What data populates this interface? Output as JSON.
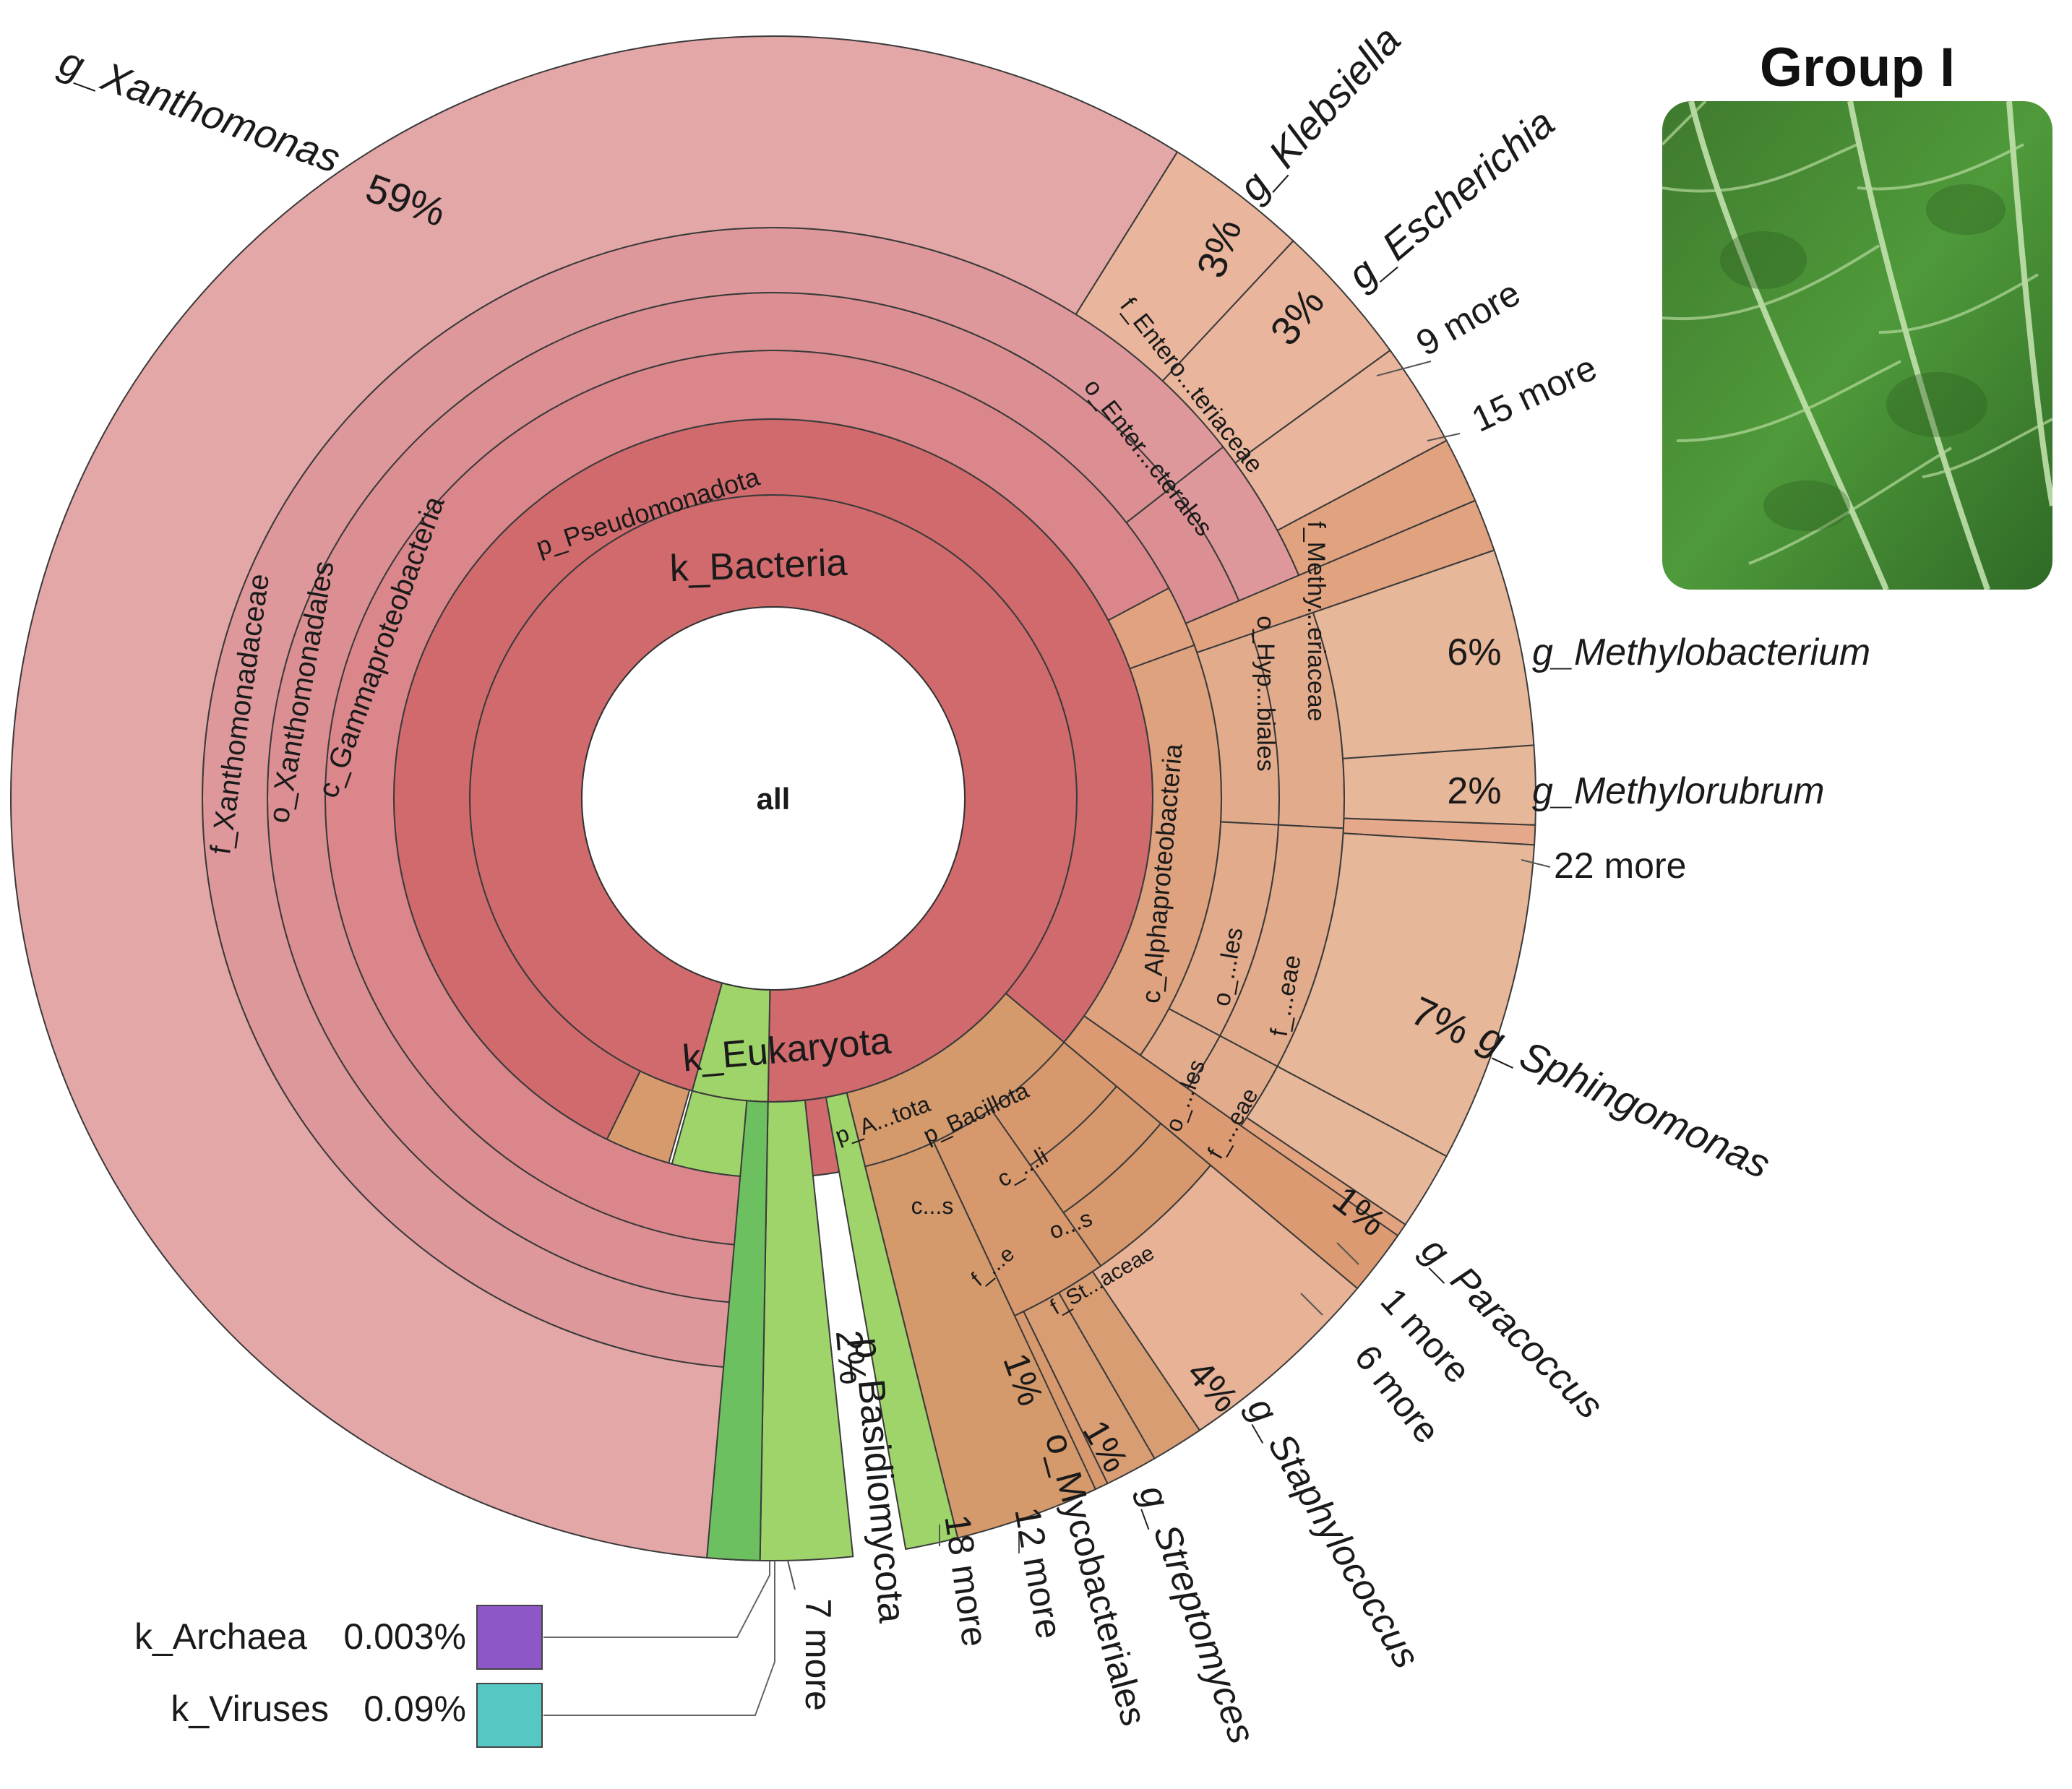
{
  "group_title": "Group I",
  "photo": {
    "subject": "leaf-photo"
  },
  "colors": {
    "kingdom_bacteria": "#d06a6d",
    "phylum": "#d67d80",
    "class": "#da868a",
    "order": "#dc8f92",
    "family": "#de989b",
    "genus": "#e3a7a8",
    "alpha": "#e7b79a",
    "alpha_inner": "#dea07c",
    "bacillota": "#d79a6c",
    "eukaryota": "#9ed46a",
    "eukaryota_dark": "#6cc05f",
    "archaea": "#8e57c8",
    "viruses": "#55c8c4"
  },
  "chart_data": {
    "type": "sunburst",
    "title": "Group I",
    "center_label": "all",
    "rings": [
      "kingdom",
      "phylum",
      "class",
      "order",
      "family",
      "genus"
    ],
    "nodes": [
      {
        "rank": "kingdom",
        "name": "k_Bacteria",
        "percent": 95.9
      },
      {
        "rank": "kingdom",
        "name": "k_Eukaryota",
        "percent": 4.0
      },
      {
        "rank": "kingdom",
        "name": "k_Archaea",
        "percent": 0.003
      },
      {
        "rank": "kingdom",
        "name": "k_Viruses",
        "percent": 0.09
      },
      {
        "rank": "phylum",
        "name": "p_Pseudomonadota"
      },
      {
        "rank": "phylum",
        "name": "p_A...tota"
      },
      {
        "rank": "phylum",
        "name": "p_Bacillota"
      },
      {
        "rank": "phylum",
        "name": "p_Basidiomycota",
        "percent": 2
      },
      {
        "rank": "class",
        "name": "c_Gammaproteobacteria"
      },
      {
        "rank": "class",
        "name": "c_Alphaproteobacteria"
      },
      {
        "rank": "class",
        "name": "c_...li"
      },
      {
        "rank": "class",
        "name": "c...s"
      },
      {
        "rank": "order",
        "name": "o_Xanthomonadales"
      },
      {
        "rank": "order",
        "name": "o_Enter...cterales"
      },
      {
        "rank": "order",
        "name": "o_Hyp...biales"
      },
      {
        "rank": "order",
        "name": "o_...les"
      },
      {
        "rank": "order",
        "name": "o_...les (2)"
      },
      {
        "rank": "order",
        "name": "o...s"
      },
      {
        "rank": "order",
        "name": "o_Mycobacteriales",
        "percent": 1
      },
      {
        "rank": "family",
        "name": "f_Xanthomonadaceae"
      },
      {
        "rank": "family",
        "name": "f_Entero...teriaceae"
      },
      {
        "rank": "family",
        "name": "f_Methy...eriaceae"
      },
      {
        "rank": "family",
        "name": "f_...eae"
      },
      {
        "rank": "family",
        "name": "f_...eae (2)"
      },
      {
        "rank": "family",
        "name": "f_St...aceae"
      },
      {
        "rank": "family",
        "name": "f_...e"
      },
      {
        "rank": "genus",
        "name": "g_Xanthomonas",
        "percent": 59
      },
      {
        "rank": "genus",
        "name": "g_Klebsiella",
        "percent": 3
      },
      {
        "rank": "genus",
        "name": "g_Escherichia",
        "percent": 3
      },
      {
        "rank": "genus",
        "name": "9 more"
      },
      {
        "rank": "genus",
        "name": "15 more"
      },
      {
        "rank": "genus",
        "name": "g_Methylobacterium",
        "percent": 6
      },
      {
        "rank": "genus",
        "name": "g_Methylorubrum",
        "percent": 2
      },
      {
        "rank": "genus",
        "name": "22 more"
      },
      {
        "rank": "genus",
        "name": "g_Sphingomonas",
        "percent": 7
      },
      {
        "rank": "genus",
        "name": "g_Paracoccus",
        "percent": 1
      },
      {
        "rank": "genus",
        "name": "1 more"
      },
      {
        "rank": "genus",
        "name": "6 more"
      },
      {
        "rank": "genus",
        "name": "g_Staphylococcus",
        "percent": 4
      },
      {
        "rank": "genus",
        "name": "g_Streptomyces",
        "percent": 1
      },
      {
        "rank": "genus",
        "name": "12 more"
      },
      {
        "rank": "genus",
        "name": "18 more"
      },
      {
        "rank": "genus",
        "name": "7 more"
      }
    ],
    "legend": [
      {
        "label": "k_Archaea",
        "percent_text": "0.003%",
        "color": "#8e57c8"
      },
      {
        "label": "k_Viruses",
        "percent_text": "0.09%",
        "color": "#55c8c4"
      }
    ]
  },
  "texts": {
    "center": "all",
    "k_bacteria": "k_Bacteria",
    "k_eukaryota": "k_Eukaryota",
    "p_pseudomonadota": "p_Pseudomonadota",
    "c_gammaproteobacteria": "c_Gammaproteobacteria",
    "o_xanthomonadales": "o_Xanthomonadales",
    "f_xanthomonadaceae": "f_Xanthomonadaceae",
    "g_xanthomonas": "g_Xanthomonas",
    "pct_59": "59%",
    "g_klebsiella": "g_Klebsiella",
    "g_escherichia": "g_Escherichia",
    "pct_3a": "3%",
    "pct_3b": "3%",
    "more_9": "9 more",
    "more_15": "15 more",
    "f_entero": "f_Entero...teriaceae",
    "o_enter": "o_Enter...cterales",
    "g_methylobacterium": "g_Methylobacterium",
    "pct_6": "6%",
    "g_methylorubrum": "g_Methylorubrum",
    "pct_2a": "2%",
    "more_22": "22 more",
    "f_methy": "f_Methy...eriaceae",
    "o_hyp": "o_Hyp...biales",
    "c_alpha": "c_Alphaproteobacteria",
    "o_les1": "o_...les",
    "f_eae1": "f_...eae",
    "g_sphingomonas": "g_Sphingomonas",
    "pct_7": "7%",
    "o_les2": "o_...les",
    "f_eae2": "f_...eae",
    "pct_1a": "1%",
    "g_paracoccus": "g_Paracoccus",
    "more_1": "1 more",
    "more_6": "6 more",
    "p_atota": "p_A...tota",
    "p_bacillota": "p_Bacillota",
    "c_li": "c_...li",
    "c_s": "c...s",
    "o_s": "o...s",
    "f_e": "f_...e",
    "f_staceae": "f_St...aceae",
    "pct_4": "4%",
    "g_staphylococcus": "g_Staphylococcus",
    "pct_1b": "1%",
    "g_streptomyces": "g_Streptomyces",
    "pct_1c": "1%",
    "o_mycobacteriales": "o_Mycobacteriales",
    "more_12": "12 more",
    "more_18": "18 more",
    "pct_2b": "2%",
    "p_basidiomycota": "p_Basidiomycota",
    "more_7": "7 more"
  }
}
